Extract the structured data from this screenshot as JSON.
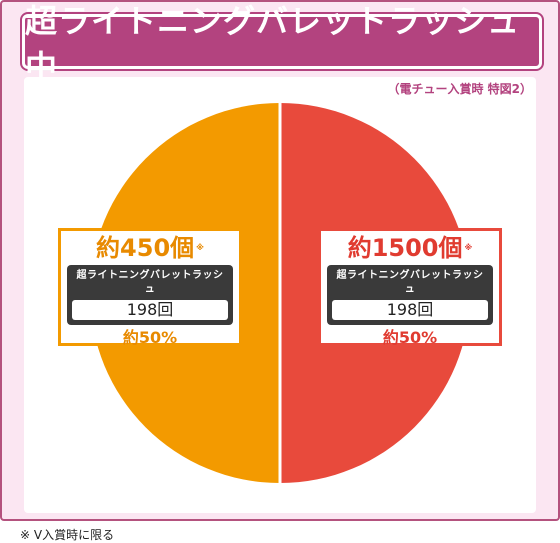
{
  "title": "超ライトニングバレットラッシュ中",
  "subtitle": "（電チュー入賞時 特図2）",
  "colors": {
    "left_slice": "#f39a00",
    "right_slice": "#e84a3c",
    "accent": "#b3437f"
  },
  "chart_data": {
    "type": "pie",
    "title": "超ライトニングバレットラッシュ中",
    "slices": [
      {
        "label": "約450個",
        "value": 50,
        "color": "#f39a00"
      },
      {
        "label": "約1500個",
        "value": 50,
        "color": "#e84a3c"
      }
    ]
  },
  "boxes": {
    "left": {
      "head": "約450個",
      "mark": "※",
      "label": "超ライトニングバレットラッシュ",
      "value": "198回",
      "pct": "約50%"
    },
    "right": {
      "head": "約1500個",
      "mark": "※",
      "label": "超ライトニングバレットラッシュ",
      "value": "198回",
      "pct": "約50%"
    }
  },
  "footnote": "※ V入賞時に限る"
}
